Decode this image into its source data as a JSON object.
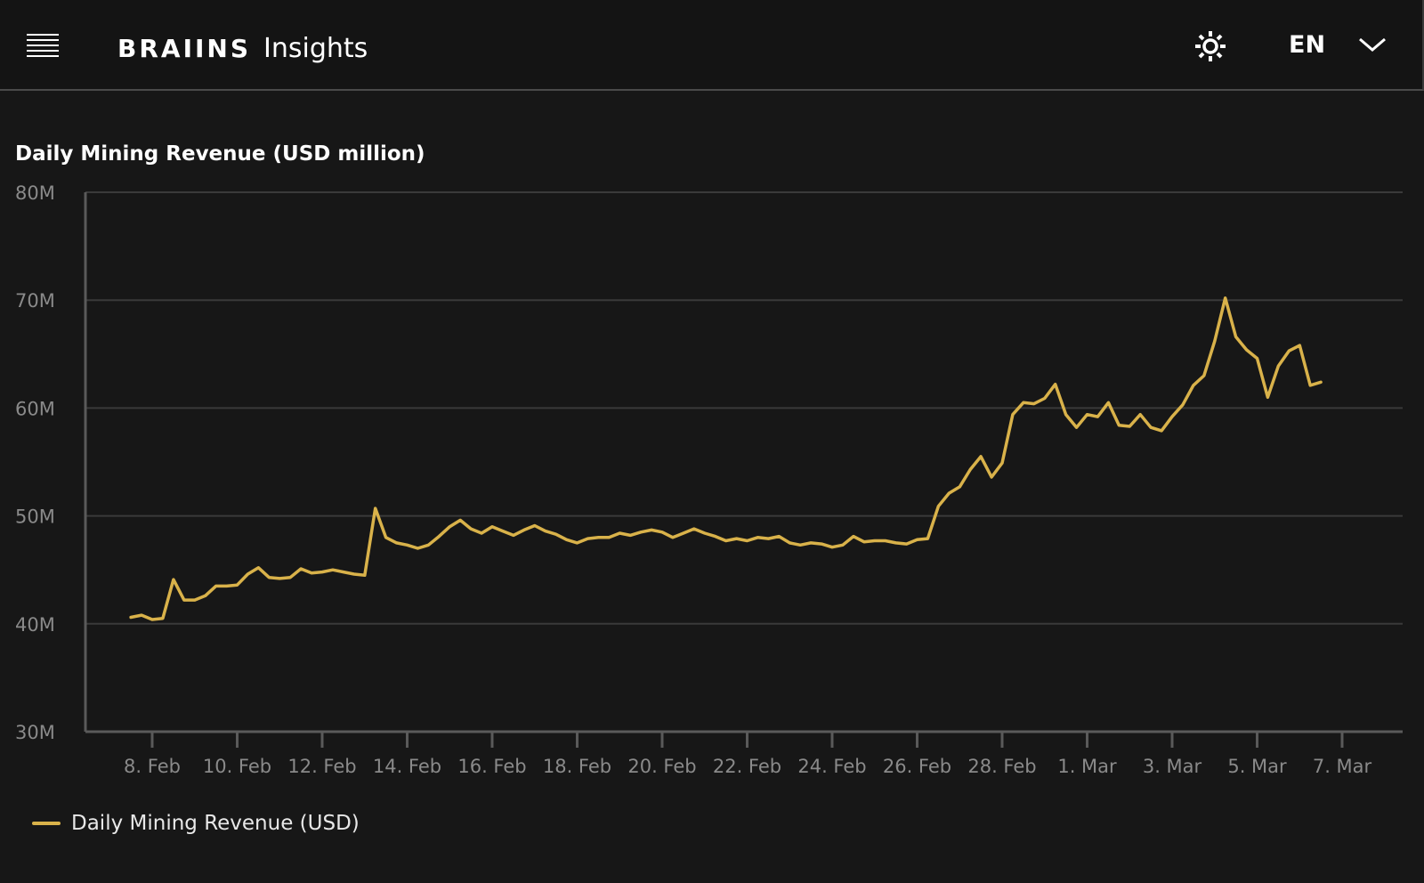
{
  "header": {
    "brand": "BRAIINS",
    "product": "Insights",
    "language": "EN",
    "menu_icon": "menu-icon",
    "theme_icon": "sun-icon",
    "chevron_icon": "chevron-down-icon"
  },
  "colors": {
    "background": "#171717",
    "series": "#d9b24a",
    "grid": "#3a3a3a",
    "axis": "#5a5a5a",
    "tick_text": "#8a8a8a"
  },
  "legend": {
    "label": "Daily Mining Revenue (USD)"
  },
  "chart_data": {
    "type": "line",
    "title": "Daily Mining Revenue (USD million)",
    "xlabel": "",
    "ylabel": "",
    "ylim": [
      30,
      80
    ],
    "y_ticks": [
      {
        "value": 80,
        "label": "80M"
      },
      {
        "value": 70,
        "label": "70M"
      },
      {
        "value": 60,
        "label": "60M"
      },
      {
        "value": 50,
        "label": "50M"
      },
      {
        "value": 40,
        "label": "40M"
      },
      {
        "value": 30,
        "label": "30M"
      }
    ],
    "x_ticks": [
      {
        "date": "2024-02-08",
        "label": "8. Feb"
      },
      {
        "date": "2024-02-10",
        "label": "10. Feb"
      },
      {
        "date": "2024-02-12",
        "label": "12. Feb"
      },
      {
        "date": "2024-02-14",
        "label": "14. Feb"
      },
      {
        "date": "2024-02-16",
        "label": "16. Feb"
      },
      {
        "date": "2024-02-18",
        "label": "18. Feb"
      },
      {
        "date": "2024-02-20",
        "label": "20. Feb"
      },
      {
        "date": "2024-02-22",
        "label": "22. Feb"
      },
      {
        "date": "2024-02-24",
        "label": "24. Feb"
      },
      {
        "date": "2024-02-26",
        "label": "26. Feb"
      },
      {
        "date": "2024-02-28",
        "label": "28. Feb"
      },
      {
        "date": "2024-03-01",
        "label": "1. Mar"
      },
      {
        "date": "2024-03-03",
        "label": "3. Mar"
      },
      {
        "date": "2024-03-05",
        "label": "5. Mar"
      },
      {
        "date": "2024-03-07",
        "label": "7. Mar"
      }
    ],
    "grid": true,
    "legend_position": "bottom-left",
    "series": [
      {
        "name": "Daily Mining Revenue (USD)",
        "color": "#d9b24a",
        "points": [
          [
            "2024-02-07 12:00",
            40.6
          ],
          [
            "2024-02-07 18:00",
            40.8
          ],
          [
            "2024-02-08 00:00",
            40.4
          ],
          [
            "2024-02-08 06:00",
            40.5
          ],
          [
            "2024-02-08 12:00",
            44.1
          ],
          [
            "2024-02-08 18:00",
            42.2
          ],
          [
            "2024-02-09 00:00",
            42.2
          ],
          [
            "2024-02-09 06:00",
            42.6
          ],
          [
            "2024-02-09 12:00",
            43.5
          ],
          [
            "2024-02-09 18:00",
            43.5
          ],
          [
            "2024-02-10 00:00",
            43.6
          ],
          [
            "2024-02-10 06:00",
            44.6
          ],
          [
            "2024-02-10 12:00",
            45.2
          ],
          [
            "2024-02-10 18:00",
            44.3
          ],
          [
            "2024-02-11 00:00",
            44.2
          ],
          [
            "2024-02-11 06:00",
            44.3
          ],
          [
            "2024-02-11 12:00",
            45.1
          ],
          [
            "2024-02-11 18:00",
            44.7
          ],
          [
            "2024-02-12 00:00",
            44.8
          ],
          [
            "2024-02-12 06:00",
            45.0
          ],
          [
            "2024-02-12 12:00",
            44.8
          ],
          [
            "2024-02-12 18:00",
            44.6
          ],
          [
            "2024-02-13 00:00",
            44.5
          ],
          [
            "2024-02-13 06:00",
            50.7
          ],
          [
            "2024-02-13 12:00",
            48.0
          ],
          [
            "2024-02-13 18:00",
            47.5
          ],
          [
            "2024-02-14 00:00",
            47.3
          ],
          [
            "2024-02-14 06:00",
            47.0
          ],
          [
            "2024-02-14 12:00",
            47.3
          ],
          [
            "2024-02-14 18:00",
            48.1
          ],
          [
            "2024-02-15 00:00",
            49.0
          ],
          [
            "2024-02-15 06:00",
            49.6
          ],
          [
            "2024-02-15 12:00",
            48.8
          ],
          [
            "2024-02-15 18:00",
            48.4
          ],
          [
            "2024-02-16 00:00",
            49.0
          ],
          [
            "2024-02-16 06:00",
            48.6
          ],
          [
            "2024-02-16 12:00",
            48.2
          ],
          [
            "2024-02-16 18:00",
            48.7
          ],
          [
            "2024-02-17 00:00",
            49.1
          ],
          [
            "2024-02-17 06:00",
            48.6
          ],
          [
            "2024-02-17 12:00",
            48.3
          ],
          [
            "2024-02-17 18:00",
            47.8
          ],
          [
            "2024-02-18 00:00",
            47.5
          ],
          [
            "2024-02-18 06:00",
            47.9
          ],
          [
            "2024-02-18 12:00",
            48.0
          ],
          [
            "2024-02-18 18:00",
            48.0
          ],
          [
            "2024-02-19 00:00",
            48.4
          ],
          [
            "2024-02-19 06:00",
            48.2
          ],
          [
            "2024-02-19 12:00",
            48.5
          ],
          [
            "2024-02-19 18:00",
            48.7
          ],
          [
            "2024-02-20 00:00",
            48.5
          ],
          [
            "2024-02-20 06:00",
            48.0
          ],
          [
            "2024-02-20 12:00",
            48.4
          ],
          [
            "2024-02-20 18:00",
            48.8
          ],
          [
            "2024-02-21 00:00",
            48.4
          ],
          [
            "2024-02-21 06:00",
            48.1
          ],
          [
            "2024-02-21 12:00",
            47.7
          ],
          [
            "2024-02-21 18:00",
            47.9
          ],
          [
            "2024-02-22 00:00",
            47.7
          ],
          [
            "2024-02-22 06:00",
            48.0
          ],
          [
            "2024-02-22 12:00",
            47.9
          ],
          [
            "2024-02-22 18:00",
            48.1
          ],
          [
            "2024-02-23 00:00",
            47.5
          ],
          [
            "2024-02-23 06:00",
            47.3
          ],
          [
            "2024-02-23 12:00",
            47.5
          ],
          [
            "2024-02-23 18:00",
            47.4
          ],
          [
            "2024-02-24 00:00",
            47.1
          ],
          [
            "2024-02-24 06:00",
            47.3
          ],
          [
            "2024-02-24 12:00",
            48.1
          ],
          [
            "2024-02-24 18:00",
            47.6
          ],
          [
            "2024-02-25 00:00",
            47.7
          ],
          [
            "2024-02-25 06:00",
            47.7
          ],
          [
            "2024-02-25 12:00",
            47.5
          ],
          [
            "2024-02-25 18:00",
            47.4
          ],
          [
            "2024-02-26 00:00",
            47.8
          ],
          [
            "2024-02-26 06:00",
            47.9
          ],
          [
            "2024-02-26 12:00",
            50.9
          ],
          [
            "2024-02-26 18:00",
            52.1
          ],
          [
            "2024-02-27 00:00",
            52.7
          ],
          [
            "2024-02-27 06:00",
            54.3
          ],
          [
            "2024-02-27 12:00",
            55.5
          ],
          [
            "2024-02-27 18:00",
            53.6
          ],
          [
            "2024-02-28 00:00",
            54.9
          ],
          [
            "2024-02-28 06:00",
            59.4
          ],
          [
            "2024-02-28 12:00",
            60.5
          ],
          [
            "2024-02-28 18:00",
            60.4
          ],
          [
            "2024-02-29 00:00",
            60.9
          ],
          [
            "2024-02-29 06:00",
            62.2
          ],
          [
            "2024-02-29 12:00",
            59.4
          ],
          [
            "2024-02-29 18:00",
            58.2
          ],
          [
            "2024-03-01 00:00",
            59.4
          ],
          [
            "2024-03-01 06:00",
            59.2
          ],
          [
            "2024-03-01 12:00",
            60.5
          ],
          [
            "2024-03-01 18:00",
            58.4
          ],
          [
            "2024-03-02 00:00",
            58.3
          ],
          [
            "2024-03-02 06:00",
            59.4
          ],
          [
            "2024-03-02 12:00",
            58.2
          ],
          [
            "2024-03-02 18:00",
            57.9
          ],
          [
            "2024-03-03 00:00",
            59.2
          ],
          [
            "2024-03-03 06:00",
            60.3
          ],
          [
            "2024-03-03 12:00",
            62.1
          ],
          [
            "2024-03-03 18:00",
            63.0
          ],
          [
            "2024-03-04 00:00",
            66.2
          ],
          [
            "2024-03-04 06:00",
            70.2
          ],
          [
            "2024-03-04 12:00",
            66.6
          ],
          [
            "2024-03-04 18:00",
            65.4
          ],
          [
            "2024-03-05 00:00",
            64.6
          ],
          [
            "2024-03-05 06:00",
            61.0
          ],
          [
            "2024-03-05 12:00",
            63.9
          ],
          [
            "2024-03-05 18:00",
            65.3
          ],
          [
            "2024-03-06 00:00",
            65.8
          ],
          [
            "2024-03-06 06:00",
            62.1
          ],
          [
            "2024-03-06 12:00",
            62.4
          ]
        ]
      }
    ]
  }
}
